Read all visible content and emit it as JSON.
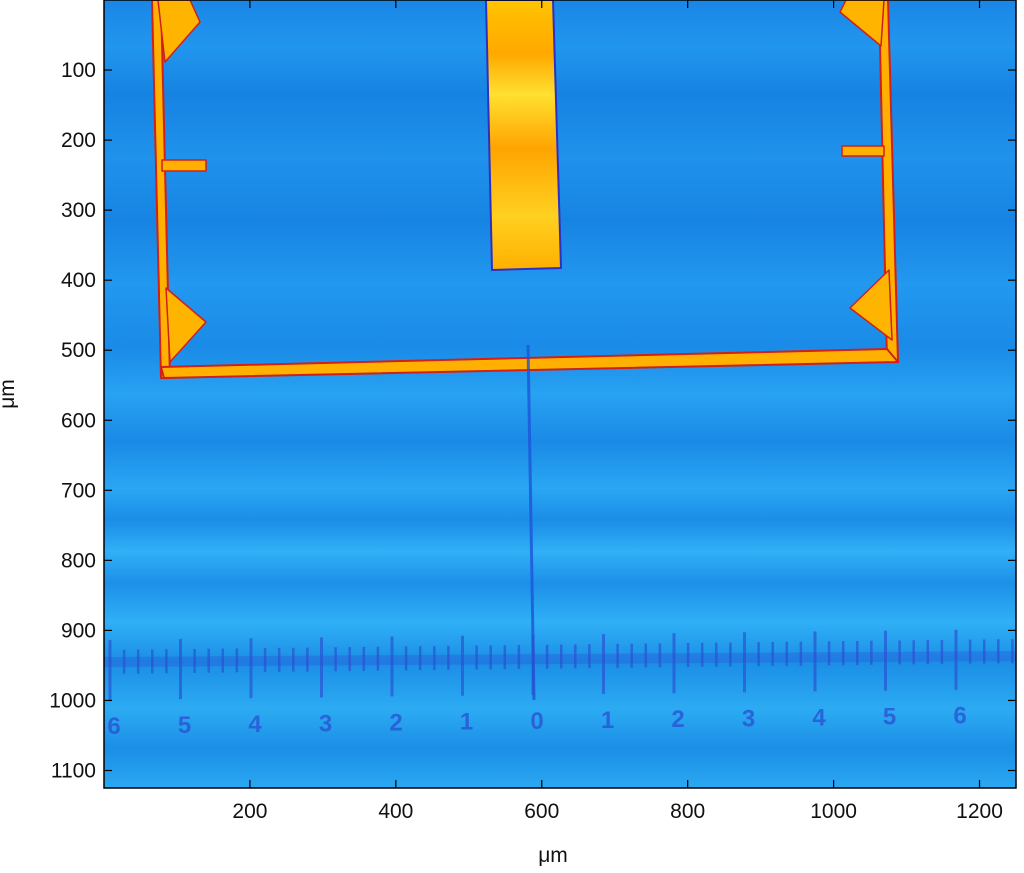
{
  "image": {
    "x_axis": {
      "label": "μm",
      "range": [
        0,
        1250
      ],
      "ticks": [
        200,
        400,
        600,
        800,
        1000,
        1200
      ],
      "tick_labels": [
        "200",
        "400",
        "600",
        "800",
        "1000",
        "1200"
      ]
    },
    "y_axis": {
      "label": "μm",
      "range": [
        0,
        1125
      ],
      "reversed": true,
      "ticks": [
        100,
        200,
        300,
        400,
        500,
        600,
        700,
        800,
        900,
        1000,
        1100
      ],
      "tick_labels": [
        "100",
        "200",
        "300",
        "400",
        "500",
        "600",
        "700",
        "800",
        "900",
        "1000",
        "1100"
      ]
    },
    "colormap": "jet",
    "background_color": "#1e8fe6",
    "structure_color": "#ffb400",
    "scale_numbers": [
      "6",
      "5",
      "4",
      "3",
      "2",
      "1",
      "0",
      "1",
      "2",
      "3",
      "4",
      "5",
      "6"
    ]
  }
}
